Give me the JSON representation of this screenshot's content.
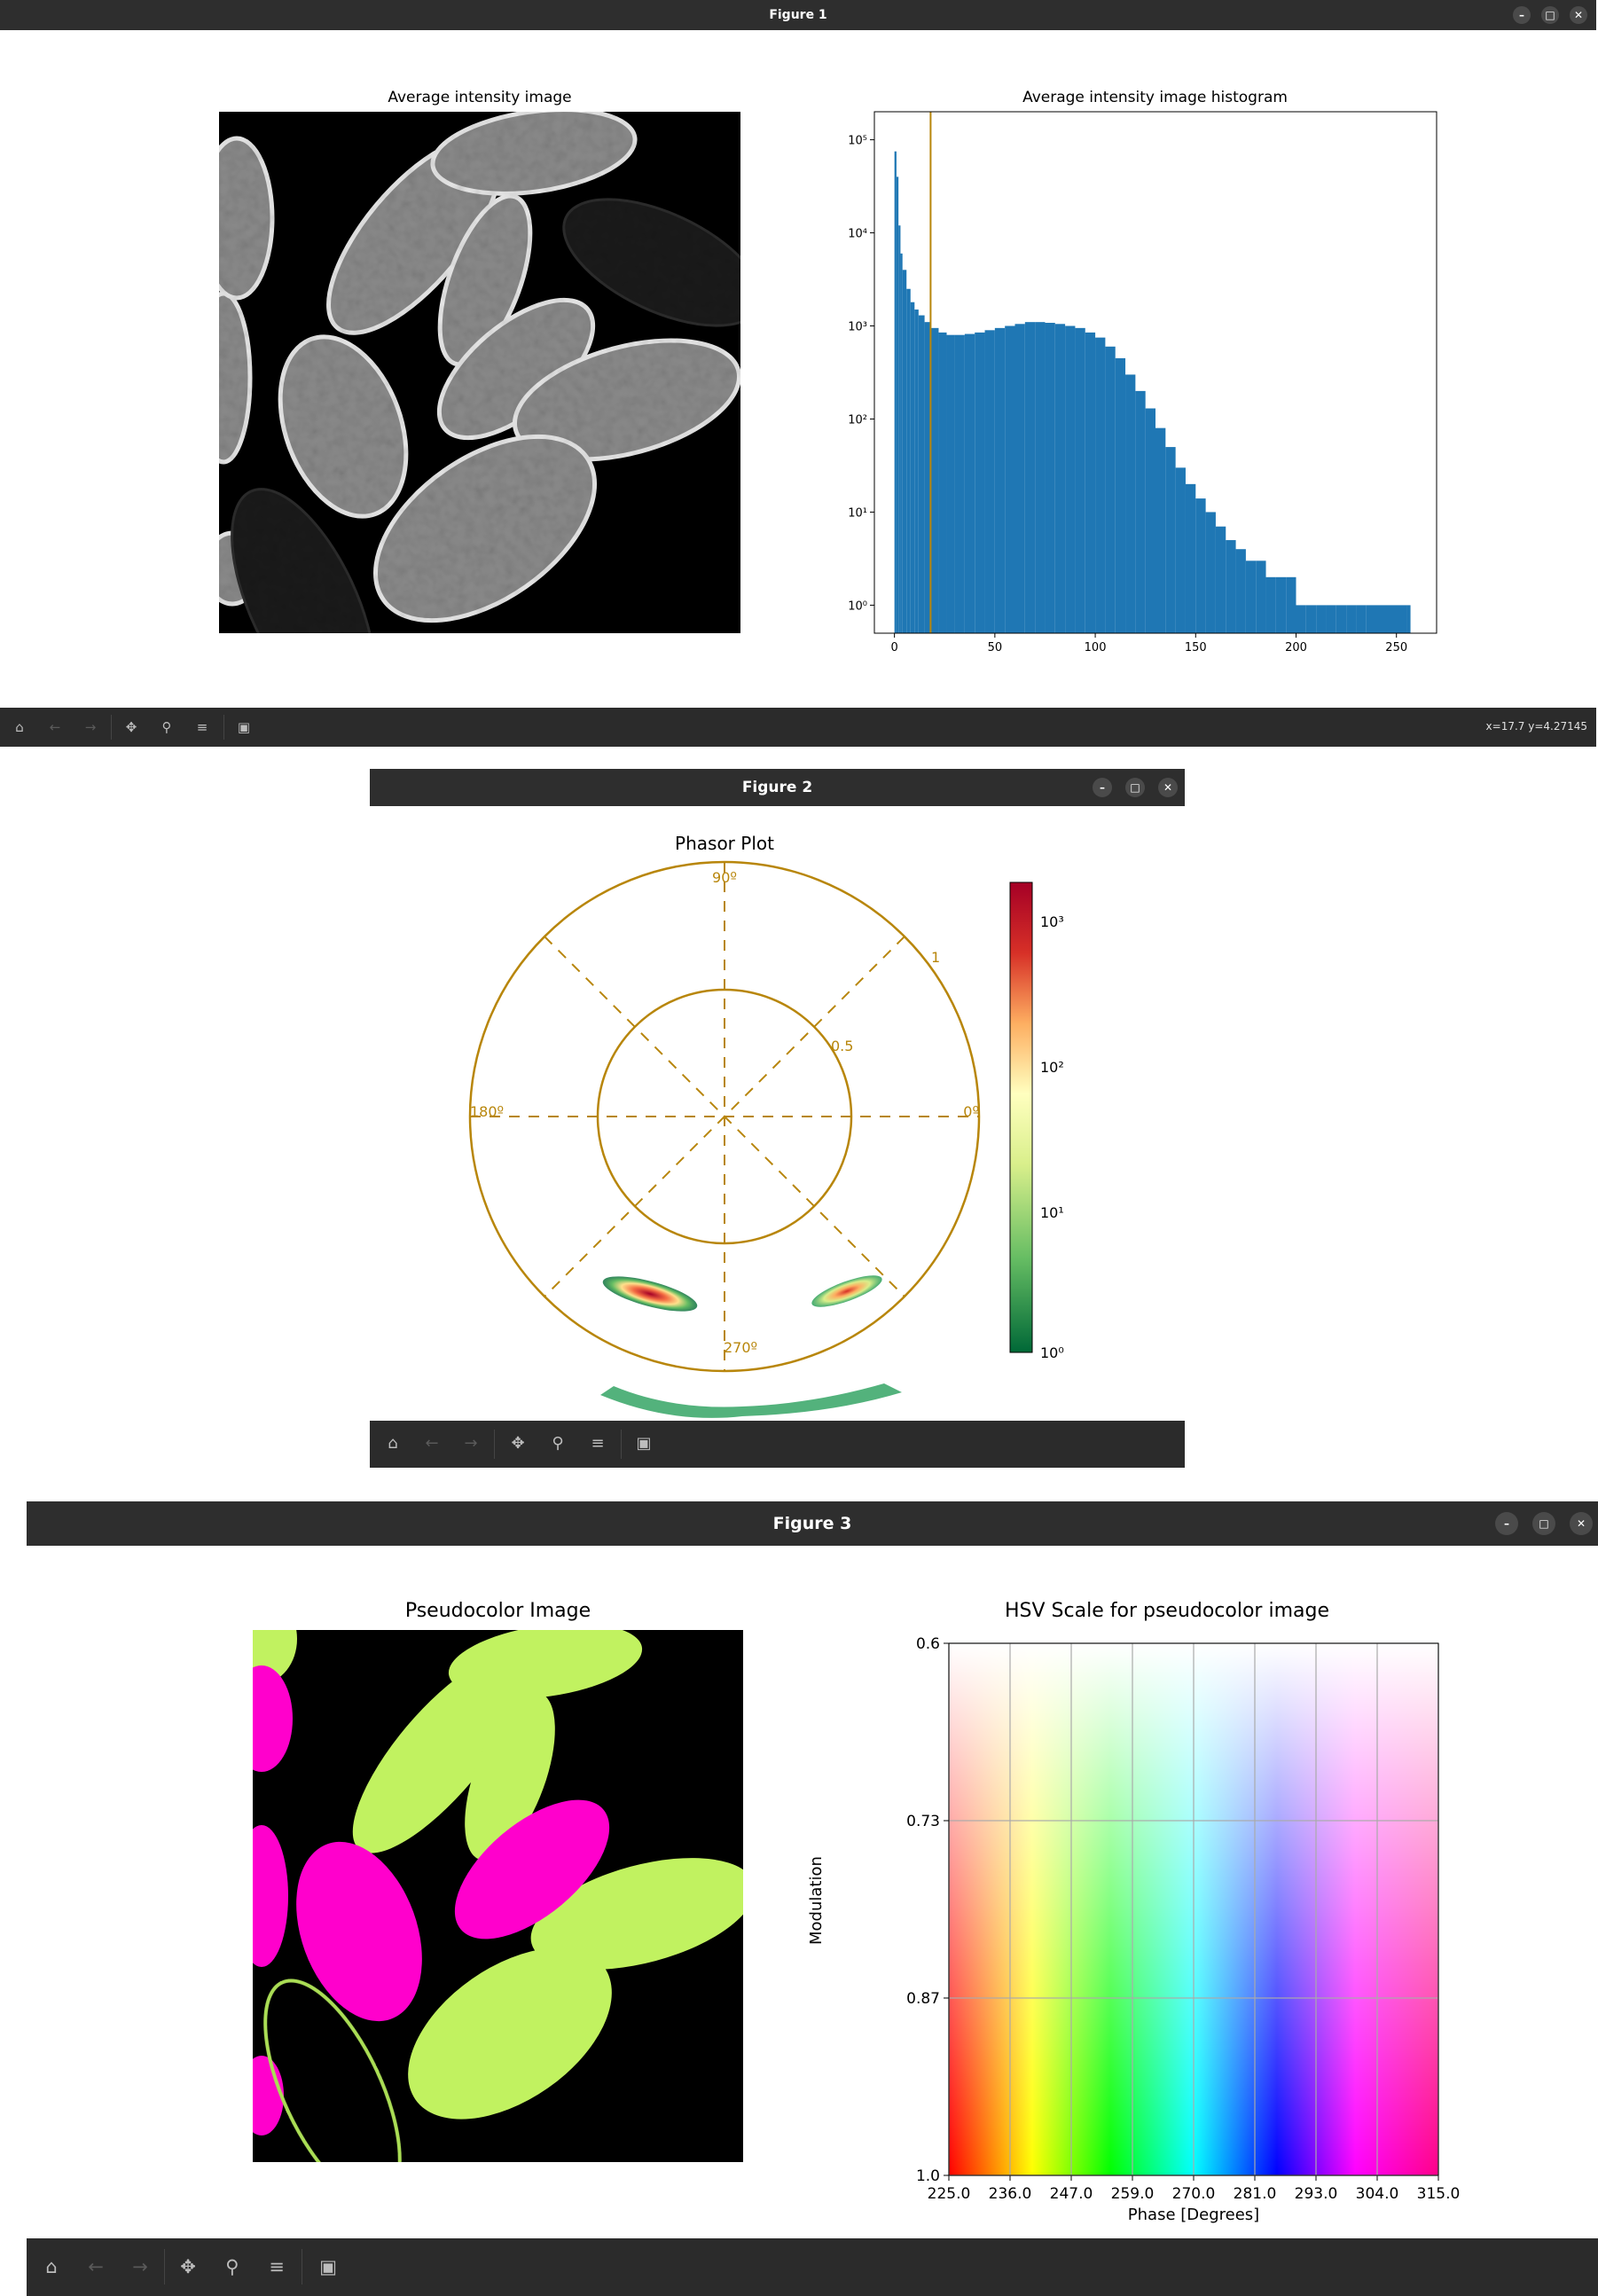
{
  "figure1": {
    "title": "Figure 1",
    "left_axis_title": "Average intensity image",
    "right_axis_title": "Average intensity image histogram",
    "status": "x=17.7 y=4.27145"
  },
  "figure2": {
    "title": "Figure 2",
    "axis_title": "Phasor Plot",
    "angle_labels": {
      "deg90": "90º",
      "deg180": "180º",
      "deg0": "0º",
      "deg270": "270º"
    },
    "radius_labels": {
      "r1": "1",
      "r05": "0.5"
    },
    "colorbar_labels": [
      "10³",
      "10²",
      "10¹",
      "10⁰"
    ]
  },
  "figure3": {
    "title": "Figure 3",
    "left_axis_title": "Pseudocolor Image",
    "right_axis_title": "HSV Scale for pseudocolor image",
    "xlabel": "Phase [Degrees]",
    "ylabel": "Modulation",
    "xticks": [
      "225.0",
      "236.0",
      "247.0",
      "259.0",
      "270.0",
      "281.0",
      "293.0",
      "304.0",
      "315.0"
    ],
    "yticks": [
      "0.6",
      "0.73",
      "0.87",
      "1.0"
    ]
  },
  "window_buttons": {
    "minimize": "–",
    "maximize": "□",
    "close": "✕"
  },
  "toolbar_icons": [
    "home-icon",
    "back-arrow-icon",
    "forward-arrow-icon",
    "pan-icon",
    "zoom-icon",
    "configure-icon",
    "save-icon"
  ],
  "chart_data": [
    {
      "type": "bar",
      "title": "Average intensity image histogram",
      "xlabel": "",
      "ylabel": "",
      "yscale": "log",
      "xlim": [
        -10,
        270
      ],
      "ylim": [
        0.5,
        200000
      ],
      "xticks": [
        "0",
        "50",
        "100",
        "150",
        "200",
        "250"
      ],
      "yticks": [
        "10⁰",
        "10¹",
        "10²",
        "10³",
        "10⁴",
        "10⁵"
      ],
      "threshold_line_x": 18,
      "bar_color": "#1f77b4",
      "line_color": "#b8860b",
      "x": [
        0,
        1,
        2,
        3,
        4,
        6,
        8,
        10,
        12,
        15,
        18,
        22,
        26,
        30,
        35,
        40,
        45,
        50,
        55,
        60,
        65,
        70,
        75,
        80,
        85,
        90,
        95,
        100,
        105,
        110,
        115,
        120,
        125,
        130,
        135,
        140,
        145,
        150,
        155,
        160,
        165,
        170,
        175,
        180,
        185,
        190,
        195,
        200,
        205,
        210,
        215,
        220,
        225,
        230,
        235,
        255
      ],
      "values": [
        75000,
        40000,
        12000,
        6000,
        4000,
        2500,
        1800,
        1500,
        1300,
        1100,
        950,
        850,
        800,
        800,
        820,
        850,
        900,
        950,
        1000,
        1050,
        1100,
        1100,
        1080,
        1050,
        1000,
        950,
        850,
        750,
        600,
        450,
        300,
        200,
        130,
        80,
        50,
        30,
        20,
        14,
        10,
        7,
        5,
        4,
        3,
        3,
        2,
        2,
        2,
        1,
        1,
        1,
        1,
        1,
        1,
        1,
        1,
        1
      ]
    },
    {
      "type": "heatmap",
      "title": "Phasor Plot",
      "projection": "polar",
      "angle_labels": [
        "0º",
        "90º",
        "180º",
        "270º"
      ],
      "radius_labels": [
        "0.5",
        "1"
      ],
      "colorbar": {
        "scale": "log",
        "ticks": [
          "10⁰",
          "10¹",
          "10²",
          "10³"
        ],
        "colormap": "RdYlGn_r"
      },
      "line_color": "#b8860b"
    },
    {
      "type": "heatmap",
      "title": "HSV Scale for pseudocolor image",
      "xlabel": "Phase [Degrees]",
      "ylabel": "Modulation",
      "xlim": [
        225.0,
        315.0
      ],
      "ylim": [
        1.0,
        0.6
      ],
      "xticks": [
        "225.0",
        "236.0",
        "247.0",
        "259.0",
        "270.0",
        "281.0",
        "293.0",
        "304.0",
        "315.0"
      ],
      "yticks": [
        "0.6",
        "0.73",
        "0.87",
        "1.0"
      ],
      "grid": true
    }
  ]
}
